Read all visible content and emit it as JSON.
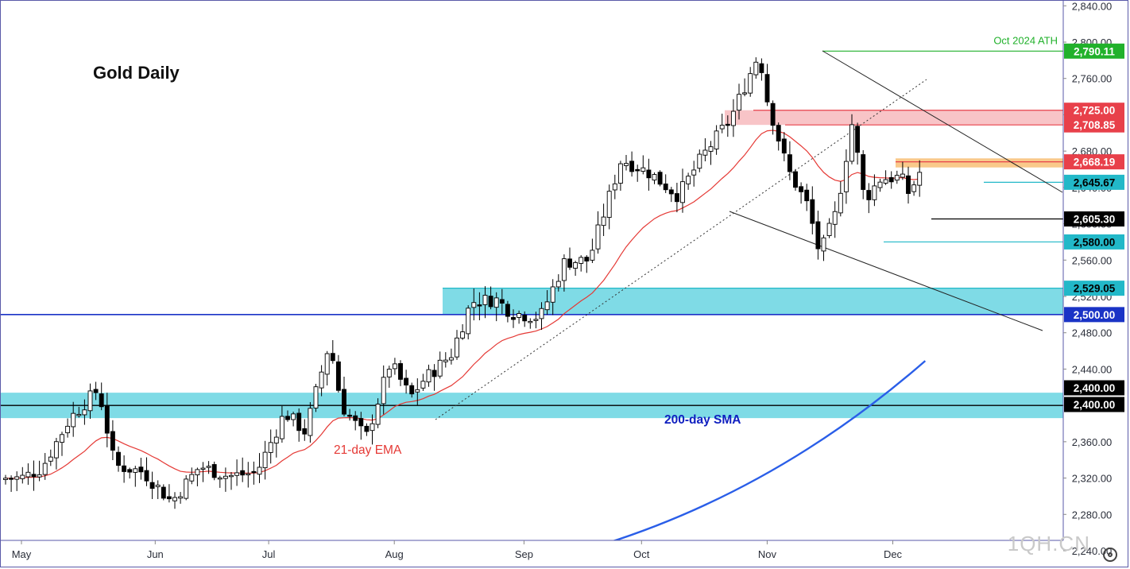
{
  "chart_data": {
    "type": "candlestick",
    "title": "Gold Daily",
    "y_axis": {
      "ylim": [
        2220,
        2850
      ],
      "ticks": [
        2240,
        2280,
        2320,
        2360,
        2400,
        2440,
        2480,
        2520,
        2560,
        2600,
        2640,
        2680,
        2720,
        2760,
        2800,
        2840
      ],
      "tick_labels": [
        "2,240.00",
        "2,280.00",
        "2,320.00",
        "2,360.00",
        "2,400.00",
        "2,440.00",
        "2,480.00",
        "2,520.00",
        "2,560.00",
        "2,600.00",
        "2,640.00",
        "2,680.00",
        "2,720.00",
        "2,760.00",
        "2,800.00",
        "2,840.00"
      ]
    },
    "x_axis": {
      "tick_labels": [
        {
          "label": "May",
          "date": "2024-05-01"
        },
        {
          "label": "Jun",
          "date": "2024-06-03"
        },
        {
          "label": "Jul",
          "date": "2024-07-01"
        },
        {
          "label": "Aug",
          "date": "2024-08-01"
        },
        {
          "label": "Sep",
          "date": "2024-09-02"
        },
        {
          "label": "Oct",
          "date": "2024-10-01"
        },
        {
          "label": "Nov",
          "date": "2024-11-01"
        },
        {
          "label": "Dec",
          "date": "2024-12-02"
        }
      ]
    },
    "closes": [
      {
        "date": "2024-05-01",
        "close": 2320
      },
      {
        "date": "2024-05-06",
        "close": 2331
      },
      {
        "date": "2024-05-13",
        "close": 2386
      },
      {
        "date": "2024-05-20",
        "close": 2418
      },
      {
        "date": "2024-05-24",
        "close": 2334
      },
      {
        "date": "2024-05-31",
        "close": 2327
      },
      {
        "date": "2024-06-07",
        "close": 2294
      },
      {
        "date": "2024-06-14",
        "close": 2333
      },
      {
        "date": "2024-06-21",
        "close": 2322
      },
      {
        "date": "2024-06-28",
        "close": 2326
      },
      {
        "date": "2024-07-05",
        "close": 2392
      },
      {
        "date": "2024-07-10",
        "close": 2371
      },
      {
        "date": "2024-07-16",
        "close": 2469
      },
      {
        "date": "2024-07-19",
        "close": 2400
      },
      {
        "date": "2024-07-25",
        "close": 2364
      },
      {
        "date": "2024-07-31",
        "close": 2447
      },
      {
        "date": "2024-08-05",
        "close": 2409
      },
      {
        "date": "2024-08-08",
        "close": 2427
      },
      {
        "date": "2024-08-15",
        "close": 2456
      },
      {
        "date": "2024-08-20",
        "close": 2514
      },
      {
        "date": "2024-08-26",
        "close": 2517
      },
      {
        "date": "2024-08-30",
        "close": 2502
      },
      {
        "date": "2024-09-06",
        "close": 2497
      },
      {
        "date": "2024-09-12",
        "close": 2558
      },
      {
        "date": "2024-09-18",
        "close": 2560
      },
      {
        "date": "2024-09-26",
        "close": 2671
      },
      {
        "date": "2024-10-03",
        "close": 2656
      },
      {
        "date": "2024-10-10",
        "close": 2631
      },
      {
        "date": "2024-10-16",
        "close": 2674
      },
      {
        "date": "2024-10-23",
        "close": 2716
      },
      {
        "date": "2024-10-30",
        "close": 2788
      },
      {
        "date": "2024-11-01",
        "close": 2737
      },
      {
        "date": "2024-11-06",
        "close": 2660
      },
      {
        "date": "2024-11-11",
        "close": 2620
      },
      {
        "date": "2024-11-14",
        "close": 2566
      },
      {
        "date": "2024-11-18",
        "close": 2612
      },
      {
        "date": "2024-11-22",
        "close": 2712
      },
      {
        "date": "2024-11-25",
        "close": 2626
      },
      {
        "date": "2024-11-29",
        "close": 2650
      },
      {
        "date": "2024-12-04",
        "close": 2651
      },
      {
        "date": "2024-12-06",
        "close": 2633
      },
      {
        "date": "2024-12-09",
        "close": 2660
      }
    ],
    "series": [
      {
        "name": "21-day EMA",
        "color": "#e53935"
      },
      {
        "name": "200-day SMA",
        "color": "#2a5ee8",
        "points": [
          {
            "date": "2024-09-01",
            "value": 2225
          },
          {
            "date": "2024-12-10",
            "value": 2449
          }
        ]
      }
    ],
    "levels": [
      {
        "label": "2,790.11",
        "value": 2790.11,
        "color": "#21b12b",
        "note": "Oct 2024 ATH"
      },
      {
        "label": "2,725.00",
        "value": 2725,
        "color": "#e8404a"
      },
      {
        "label": "2,708.85",
        "value": 2708.85,
        "color": "#e8404a"
      },
      {
        "label": "2,668.19",
        "value": 2668.19,
        "color": "#e8404a"
      },
      {
        "label": "2,645.67",
        "value": 2645.67,
        "color": "#22b8c8"
      },
      {
        "label": "2,605.30",
        "value": 2605.3,
        "color": "#000000"
      },
      {
        "label": "2,580.00",
        "value": 2580,
        "color": "#22b8c8"
      },
      {
        "label": "2,529.05",
        "value": 2529.05,
        "color": "#22b8c8"
      },
      {
        "label": "2,500.00",
        "value": 2500,
        "color": "#1a33c6"
      },
      {
        "label": "2,400.00",
        "value": 2400,
        "color": "#000000"
      },
      {
        "label": "2,400.00",
        "value": 2400,
        "color": "#000000"
      }
    ],
    "zones": [
      {
        "from": 2500,
        "to": 2529.05,
        "color": "#7fdbe6"
      },
      {
        "from": 2386,
        "to": 2414,
        "color": "#7fdbe6"
      },
      {
        "from": 2708.85,
        "to": 2725,
        "color": "#f8c4c7"
      },
      {
        "from": 2662,
        "to": 2672,
        "color": "#f9c98a"
      }
    ],
    "annotations": [
      "Oct 2024 ATH",
      "21-day EMA",
      "200-day SMA"
    ],
    "grid": false,
    "colors": {
      "up": "#ffffff",
      "down": "#000000",
      "axis": "#5a5aa8"
    }
  },
  "watermark": "1QH.CN",
  "settings_icon": "gear-icon"
}
